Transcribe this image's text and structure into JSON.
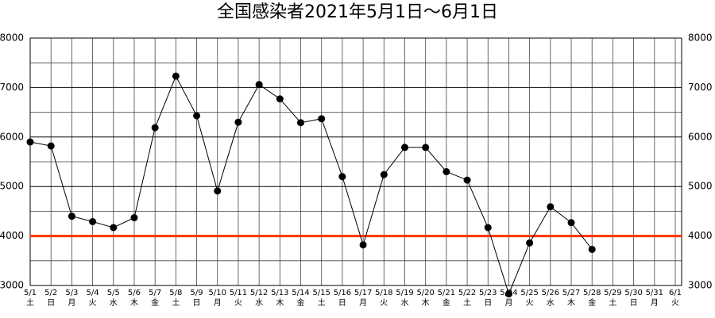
{
  "chart_data": {
    "type": "line",
    "title": "全国感染者2021年5月1日～6月1日",
    "categories": [
      "5/1",
      "5/2",
      "5/3",
      "5/4",
      "5/5",
      "5/6",
      "5/7",
      "5/8",
      "5/9",
      "5/10",
      "5/11",
      "5/12",
      "5/13",
      "5/14",
      "5/15",
      "5/16",
      "5/17",
      "5/18",
      "5/19",
      "5/20",
      "5/21",
      "5/22",
      "5/23",
      "5/24",
      "5/25",
      "5/26",
      "5/27",
      "5/28",
      "5/29",
      "5/30",
      "5/31",
      "6/1"
    ],
    "weekdays": [
      "土",
      "日",
      "月",
      "火",
      "水",
      "木",
      "金",
      "土",
      "日",
      "月",
      "火",
      "水",
      "木",
      "金",
      "土",
      "日",
      "月",
      "火",
      "水",
      "木",
      "金",
      "土",
      "日",
      "月",
      "火",
      "水",
      "木",
      "金",
      "土",
      "日",
      "月",
      "火"
    ],
    "series": [
      {
        "name": "全国感染者",
        "color": "#000000",
        "values": [
          5900,
          5820,
          4400,
          4290,
          4170,
          4370,
          6190,
          7230,
          6430,
          4910,
          6300,
          7060,
          6770,
          6290,
          6370,
          5200,
          3820,
          5240,
          5790,
          5790,
          5300,
          5130,
          4170,
          2830,
          3860,
          4590,
          4270,
          3730,
          null,
          null,
          null,
          null
        ]
      }
    ],
    "ylim": [
      3000,
      8000
    ],
    "yticks": [
      3000,
      4000,
      5000,
      6000,
      7000,
      8000
    ],
    "minor_yticks": [
      3500,
      4500,
      5500,
      6500,
      7500
    ],
    "grid": true,
    "reference_line": {
      "value": 4000,
      "color": "#ff3300"
    }
  }
}
